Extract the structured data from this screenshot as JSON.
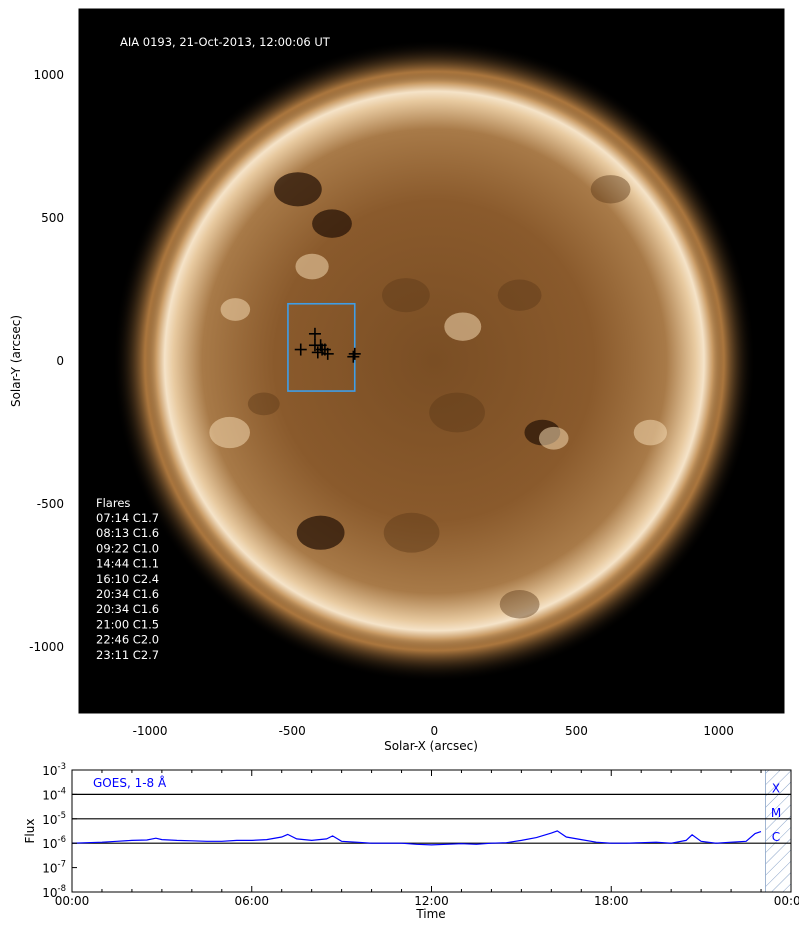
{
  "chart_data": [
    {
      "type": "scatter",
      "title": "AIA 0193, 21-Oct-2013, 12:00:06 UT",
      "xlabel": "Solar-X (arcsec)",
      "ylabel": "Solar-Y (arcsec)",
      "xlim": [
        -1250,
        1230
      ],
      "ylim": [
        -1230,
        1230
      ],
      "xticks": [
        -1000,
        -500,
        0,
        500,
        1000
      ],
      "yticks": [
        -1000,
        -500,
        0,
        500,
        1000
      ],
      "xtick_labels": [
        "-1000",
        "-500",
        "0",
        "500",
        "1000"
      ],
      "ytick_labels": [
        "-1000",
        "-500",
        "0",
        "500",
        "1000"
      ],
      "background_color": "#000000",
      "disk_color": "#8a5a2c",
      "box_color": "#3f9ee8",
      "region_box": {
        "x0": -515,
        "x1": -280,
        "y0": -105,
        "y1": 200
      },
      "flare_markers": [
        {
          "x": -420,
          "y": 95
        },
        {
          "x": -420,
          "y": 55
        },
        {
          "x": -400,
          "y": 55
        },
        {
          "x": -395,
          "y": 40
        },
        {
          "x": -410,
          "y": 30
        },
        {
          "x": -385,
          "y": 40
        },
        {
          "x": -470,
          "y": 40
        },
        {
          "x": -375,
          "y": 25
        },
        {
          "x": -280,
          "y": 25
        },
        {
          "x": -285,
          "y": 15
        }
      ],
      "legend": {
        "heading": "Flares",
        "entries": [
          "07:14 C1.7",
          "08:13 C1.6",
          "09:22 C1.0",
          "14:44 C1.1",
          "16:10 C2.4",
          "20:34 C1.6",
          "20:34 C1.6",
          "21:00 C1.5",
          "22:46 C2.0",
          "23:11 C2.7"
        ]
      }
    },
    {
      "type": "line",
      "series": [
        {
          "name": "GOES, 1-8 Å",
          "color": "#0000ff",
          "x": [
            0,
            0.5,
            1,
            1.5,
            2,
            2.5,
            2.8,
            3,
            3.5,
            4,
            4.5,
            5,
            5.5,
            6,
            6.5,
            7,
            7.2,
            7.5,
            8,
            8.5,
            8.7,
            9,
            9.5,
            10,
            10.5,
            11,
            11.5,
            12,
            12.5,
            13,
            13.5,
            14,
            14.5,
            15,
            15.5,
            16,
            16.2,
            16.5,
            17,
            17.5,
            18,
            18.5,
            19,
            19.5,
            20,
            20.5,
            20.7,
            21,
            21.5,
            22,
            22.5,
            22.8,
            23
          ],
          "y": [
            1e-06,
            1.05e-06,
            1.1e-06,
            1.2e-06,
            1.3e-06,
            1.35e-06,
            1.6e-06,
            1.4e-06,
            1.3e-06,
            1.25e-06,
            1.2e-06,
            1.2e-06,
            1.3e-06,
            1.3e-06,
            1.4e-06,
            1.8e-06,
            2.3e-06,
            1.5e-06,
            1.3e-06,
            1.5e-06,
            2e-06,
            1.2e-06,
            1.1e-06,
            1e-06,
            1e-06,
            1e-06,
            9e-07,
            8.5e-07,
            9e-07,
            9.5e-07,
            9e-07,
            1e-06,
            1.05e-06,
            1.3e-06,
            1.7e-06,
            2.6e-06,
            3.2e-06,
            1.8e-06,
            1.4e-06,
            1.1e-06,
            1e-06,
            1e-06,
            1.05e-06,
            1.1e-06,
            1e-06,
            1.3e-06,
            2.2e-06,
            1.2e-06,
            1e-06,
            1.1e-06,
            1.2e-06,
            2.5e-06,
            3e-06
          ]
        }
      ],
      "xlabel": "Time",
      "ylabel": "Flux",
      "xlim": [
        0,
        24
      ],
      "ylim": [
        1e-08,
        0.001
      ],
      "yscale": "log",
      "xtick_labels": [
        "00:00",
        "06:00",
        "12:00",
        "18:00",
        "00:00"
      ],
      "ytick_labels": [
        {
          "base": "10",
          "exp": "-3"
        },
        {
          "base": "10",
          "exp": "-4"
        },
        {
          "base": "10",
          "exp": "-5"
        },
        {
          "base": "10",
          "exp": "-6"
        },
        {
          "base": "10",
          "exp": "-7"
        },
        {
          "base": "10",
          "exp": "-8"
        }
      ],
      "class_lines": [
        0.0001,
        1e-05,
        1e-06
      ],
      "class_labels": [
        "X",
        "M",
        "C"
      ],
      "shaded_region": {
        "x0": 23.15,
        "x1": 24
      }
    }
  ]
}
